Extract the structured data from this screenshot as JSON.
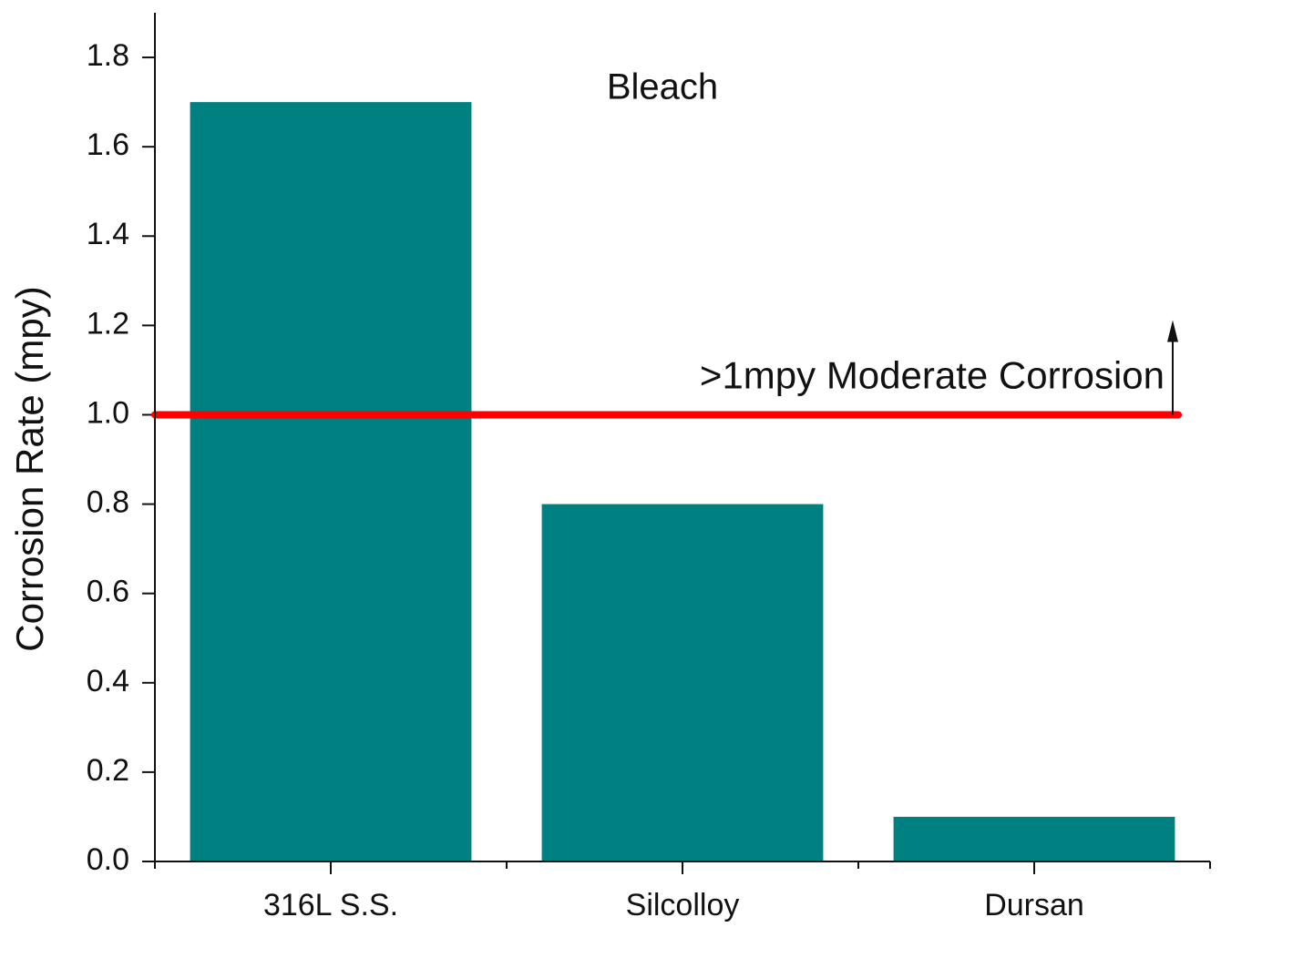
{
  "chart_data": {
    "type": "bar",
    "title": "Bleach",
    "y_label": "Corrosion Rate (mpy)",
    "categories": [
      "316L S.S.",
      "Silcolloy",
      "Dursan"
    ],
    "values": [
      1.7,
      0.8,
      0.1
    ],
    "color": "#008080",
    "ylim": [
      0,
      1.9
    ],
    "yticks": [
      {
        "value": 0,
        "label": "0.0"
      },
      {
        "value": 0.2,
        "label": "0.2"
      },
      {
        "value": 0.4,
        "label": "0.4"
      },
      {
        "value": 0.6,
        "label": "0.6"
      },
      {
        "value": 0.8,
        "label": "0.8"
      },
      {
        "value": 1,
        "label": "1.0"
      },
      {
        "value": 1.2,
        "label": "1.2"
      },
      {
        "value": 1.4,
        "label": "1.4"
      },
      {
        "value": 1.6,
        "label": "1.6"
      },
      {
        "value": 1.8,
        "label": "1.8"
      }
    ],
    "grid": false,
    "reference_line": {
      "value": 1,
      "color": "#ff0000",
      "label": ">1mpy Moderate Corrosion"
    }
  }
}
